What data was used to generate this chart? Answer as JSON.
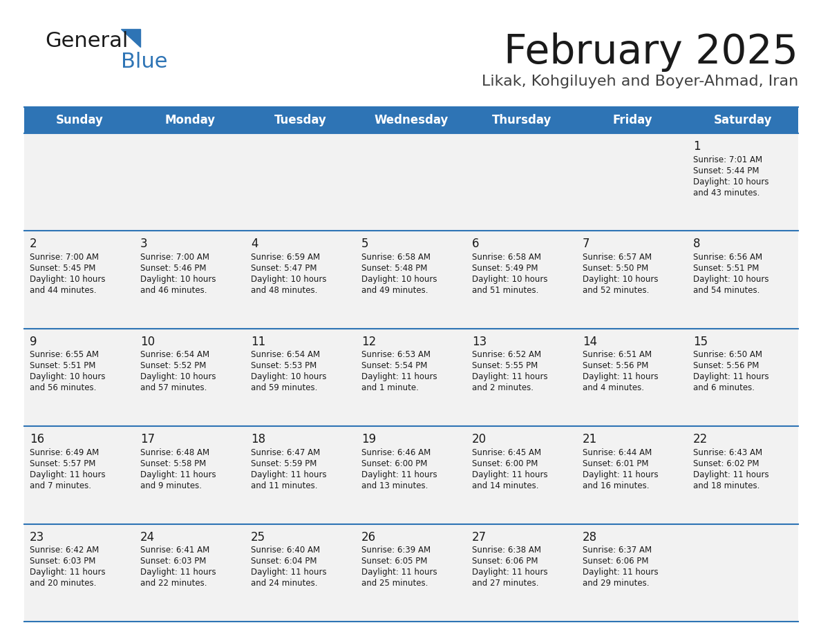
{
  "title": "February 2025",
  "subtitle": "Likak, Kohgiluyeh and Boyer-Ahmad, Iran",
  "header_bg": "#2E74B5",
  "header_text": "#FFFFFF",
  "cell_bg": "#F2F2F2",
  "separator_color": "#2E74B5",
  "day_names": [
    "Sunday",
    "Monday",
    "Tuesday",
    "Wednesday",
    "Thursday",
    "Friday",
    "Saturday"
  ],
  "days": [
    {
      "day": 1,
      "col": 6,
      "row": 0,
      "sunrise": "7:01 AM",
      "sunset": "5:44 PM",
      "daylight": "10 hours and 43 minutes"
    },
    {
      "day": 2,
      "col": 0,
      "row": 1,
      "sunrise": "7:00 AM",
      "sunset": "5:45 PM",
      "daylight": "10 hours and 44 minutes"
    },
    {
      "day": 3,
      "col": 1,
      "row": 1,
      "sunrise": "7:00 AM",
      "sunset": "5:46 PM",
      "daylight": "10 hours and 46 minutes"
    },
    {
      "day": 4,
      "col": 2,
      "row": 1,
      "sunrise": "6:59 AM",
      "sunset": "5:47 PM",
      "daylight": "10 hours and 48 minutes"
    },
    {
      "day": 5,
      "col": 3,
      "row": 1,
      "sunrise": "6:58 AM",
      "sunset": "5:48 PM",
      "daylight": "10 hours and 49 minutes"
    },
    {
      "day": 6,
      "col": 4,
      "row": 1,
      "sunrise": "6:58 AM",
      "sunset": "5:49 PM",
      "daylight": "10 hours and 51 minutes"
    },
    {
      "day": 7,
      "col": 5,
      "row": 1,
      "sunrise": "6:57 AM",
      "sunset": "5:50 PM",
      "daylight": "10 hours and 52 minutes"
    },
    {
      "day": 8,
      "col": 6,
      "row": 1,
      "sunrise": "6:56 AM",
      "sunset": "5:51 PM",
      "daylight": "10 hours and 54 minutes"
    },
    {
      "day": 9,
      "col": 0,
      "row": 2,
      "sunrise": "6:55 AM",
      "sunset": "5:51 PM",
      "daylight": "10 hours and 56 minutes"
    },
    {
      "day": 10,
      "col": 1,
      "row": 2,
      "sunrise": "6:54 AM",
      "sunset": "5:52 PM",
      "daylight": "10 hours and 57 minutes"
    },
    {
      "day": 11,
      "col": 2,
      "row": 2,
      "sunrise": "6:54 AM",
      "sunset": "5:53 PM",
      "daylight": "10 hours and 59 minutes"
    },
    {
      "day": 12,
      "col": 3,
      "row": 2,
      "sunrise": "6:53 AM",
      "sunset": "5:54 PM",
      "daylight": "11 hours and 1 minute"
    },
    {
      "day": 13,
      "col": 4,
      "row": 2,
      "sunrise": "6:52 AM",
      "sunset": "5:55 PM",
      "daylight": "11 hours and 2 minutes"
    },
    {
      "day": 14,
      "col": 5,
      "row": 2,
      "sunrise": "6:51 AM",
      "sunset": "5:56 PM",
      "daylight": "11 hours and 4 minutes"
    },
    {
      "day": 15,
      "col": 6,
      "row": 2,
      "sunrise": "6:50 AM",
      "sunset": "5:56 PM",
      "daylight": "11 hours and 6 minutes"
    },
    {
      "day": 16,
      "col": 0,
      "row": 3,
      "sunrise": "6:49 AM",
      "sunset": "5:57 PM",
      "daylight": "11 hours and 7 minutes"
    },
    {
      "day": 17,
      "col": 1,
      "row": 3,
      "sunrise": "6:48 AM",
      "sunset": "5:58 PM",
      "daylight": "11 hours and 9 minutes"
    },
    {
      "day": 18,
      "col": 2,
      "row": 3,
      "sunrise": "6:47 AM",
      "sunset": "5:59 PM",
      "daylight": "11 hours and 11 minutes"
    },
    {
      "day": 19,
      "col": 3,
      "row": 3,
      "sunrise": "6:46 AM",
      "sunset": "6:00 PM",
      "daylight": "11 hours and 13 minutes"
    },
    {
      "day": 20,
      "col": 4,
      "row": 3,
      "sunrise": "6:45 AM",
      "sunset": "6:00 PM",
      "daylight": "11 hours and 14 minutes"
    },
    {
      "day": 21,
      "col": 5,
      "row": 3,
      "sunrise": "6:44 AM",
      "sunset": "6:01 PM",
      "daylight": "11 hours and 16 minutes"
    },
    {
      "day": 22,
      "col": 6,
      "row": 3,
      "sunrise": "6:43 AM",
      "sunset": "6:02 PM",
      "daylight": "11 hours and 18 minutes"
    },
    {
      "day": 23,
      "col": 0,
      "row": 4,
      "sunrise": "6:42 AM",
      "sunset": "6:03 PM",
      "daylight": "11 hours and 20 minutes"
    },
    {
      "day": 24,
      "col": 1,
      "row": 4,
      "sunrise": "6:41 AM",
      "sunset": "6:03 PM",
      "daylight": "11 hours and 22 minutes"
    },
    {
      "day": 25,
      "col": 2,
      "row": 4,
      "sunrise": "6:40 AM",
      "sunset": "6:04 PM",
      "daylight": "11 hours and 24 minutes"
    },
    {
      "day": 26,
      "col": 3,
      "row": 4,
      "sunrise": "6:39 AM",
      "sunset": "6:05 PM",
      "daylight": "11 hours and 25 minutes"
    },
    {
      "day": 27,
      "col": 4,
      "row": 4,
      "sunrise": "6:38 AM",
      "sunset": "6:06 PM",
      "daylight": "11 hours and 27 minutes"
    },
    {
      "day": 28,
      "col": 5,
      "row": 4,
      "sunrise": "6:37 AM",
      "sunset": "6:06 PM",
      "daylight": "11 hours and 29 minutes"
    }
  ],
  "logo_general_color": "#1A1A1A",
  "logo_blue_color": "#2E74B5",
  "title_color": "#1A1A1A",
  "subtitle_color": "#404040",
  "day_num_color": "#1A1A1A",
  "cell_text_color": "#1A1A1A"
}
